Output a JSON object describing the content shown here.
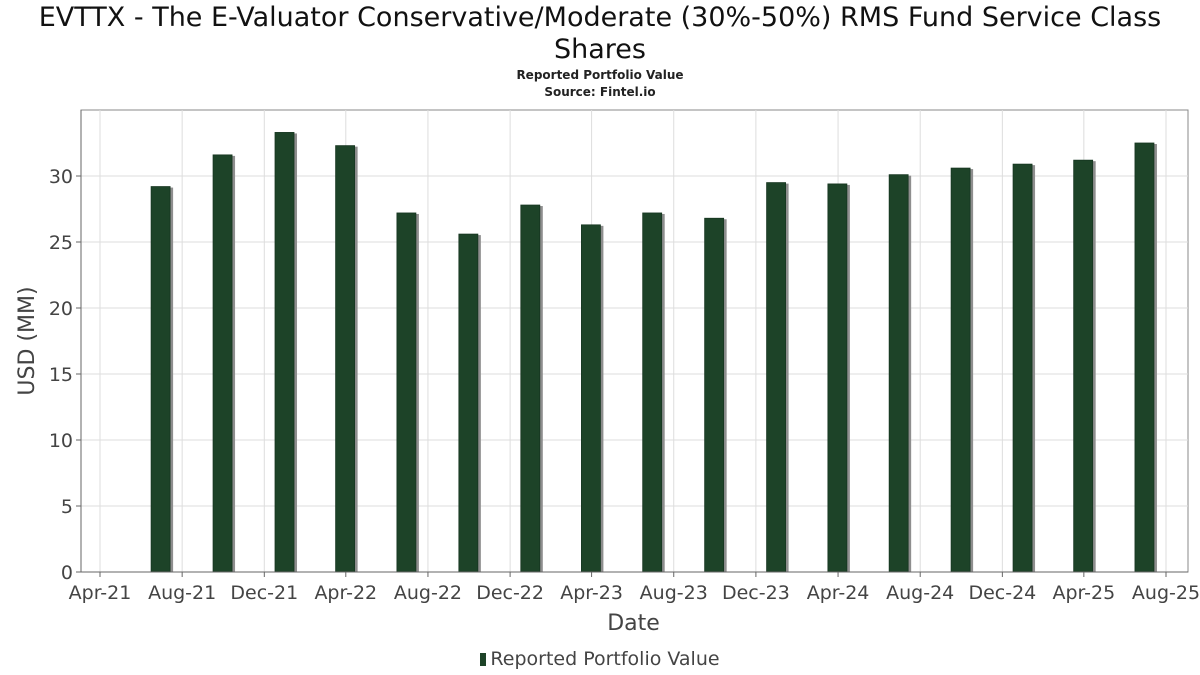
{
  "chart_data": {
    "type": "bar",
    "title": "EVTTX - The E-Valuator Conservative/Moderate (30%-50%) RMS Fund Service Class Shares",
    "subtitle": "Reported Portfolio Value",
    "source": "Source: Fintel.io",
    "xlabel": "Date",
    "ylabel": "USD (MM)",
    "x_tick_labels": [
      "Apr-21",
      "Aug-21",
      "Dec-21",
      "Apr-22",
      "Aug-22",
      "Dec-22",
      "Apr-23",
      "Aug-23",
      "Dec-23",
      "Apr-24",
      "Aug-24",
      "Dec-24",
      "Apr-25",
      "Aug-25"
    ],
    "y_ticks": [
      0,
      5,
      10,
      15,
      20,
      25,
      30
    ],
    "ylim": [
      0,
      35
    ],
    "grid": true,
    "legend_position": "bottom-center",
    "series": [
      {
        "name": "Reported Portfolio Value",
        "color": "#1d4328",
        "points": [
          {
            "date": "2021-06-30",
            "value": 29.2
          },
          {
            "date": "2021-09-30",
            "value": 31.6
          },
          {
            "date": "2021-12-31",
            "value": 33.3
          },
          {
            "date": "2022-03-31",
            "value": 32.3
          },
          {
            "date": "2022-06-30",
            "value": 27.2
          },
          {
            "date": "2022-09-30",
            "value": 25.6
          },
          {
            "date": "2022-12-31",
            "value": 27.8
          },
          {
            "date": "2023-03-31",
            "value": 26.3
          },
          {
            "date": "2023-06-30",
            "value": 27.2
          },
          {
            "date": "2023-09-30",
            "value": 26.8
          },
          {
            "date": "2023-12-31",
            "value": 29.5
          },
          {
            "date": "2024-03-31",
            "value": 29.4
          },
          {
            "date": "2024-06-30",
            "value": 30.1
          },
          {
            "date": "2024-09-30",
            "value": 30.6
          },
          {
            "date": "2024-12-31",
            "value": 30.9
          },
          {
            "date": "2025-03-31",
            "value": 31.2
          },
          {
            "date": "2025-06-30",
            "value": 32.5
          }
        ]
      }
    ]
  }
}
